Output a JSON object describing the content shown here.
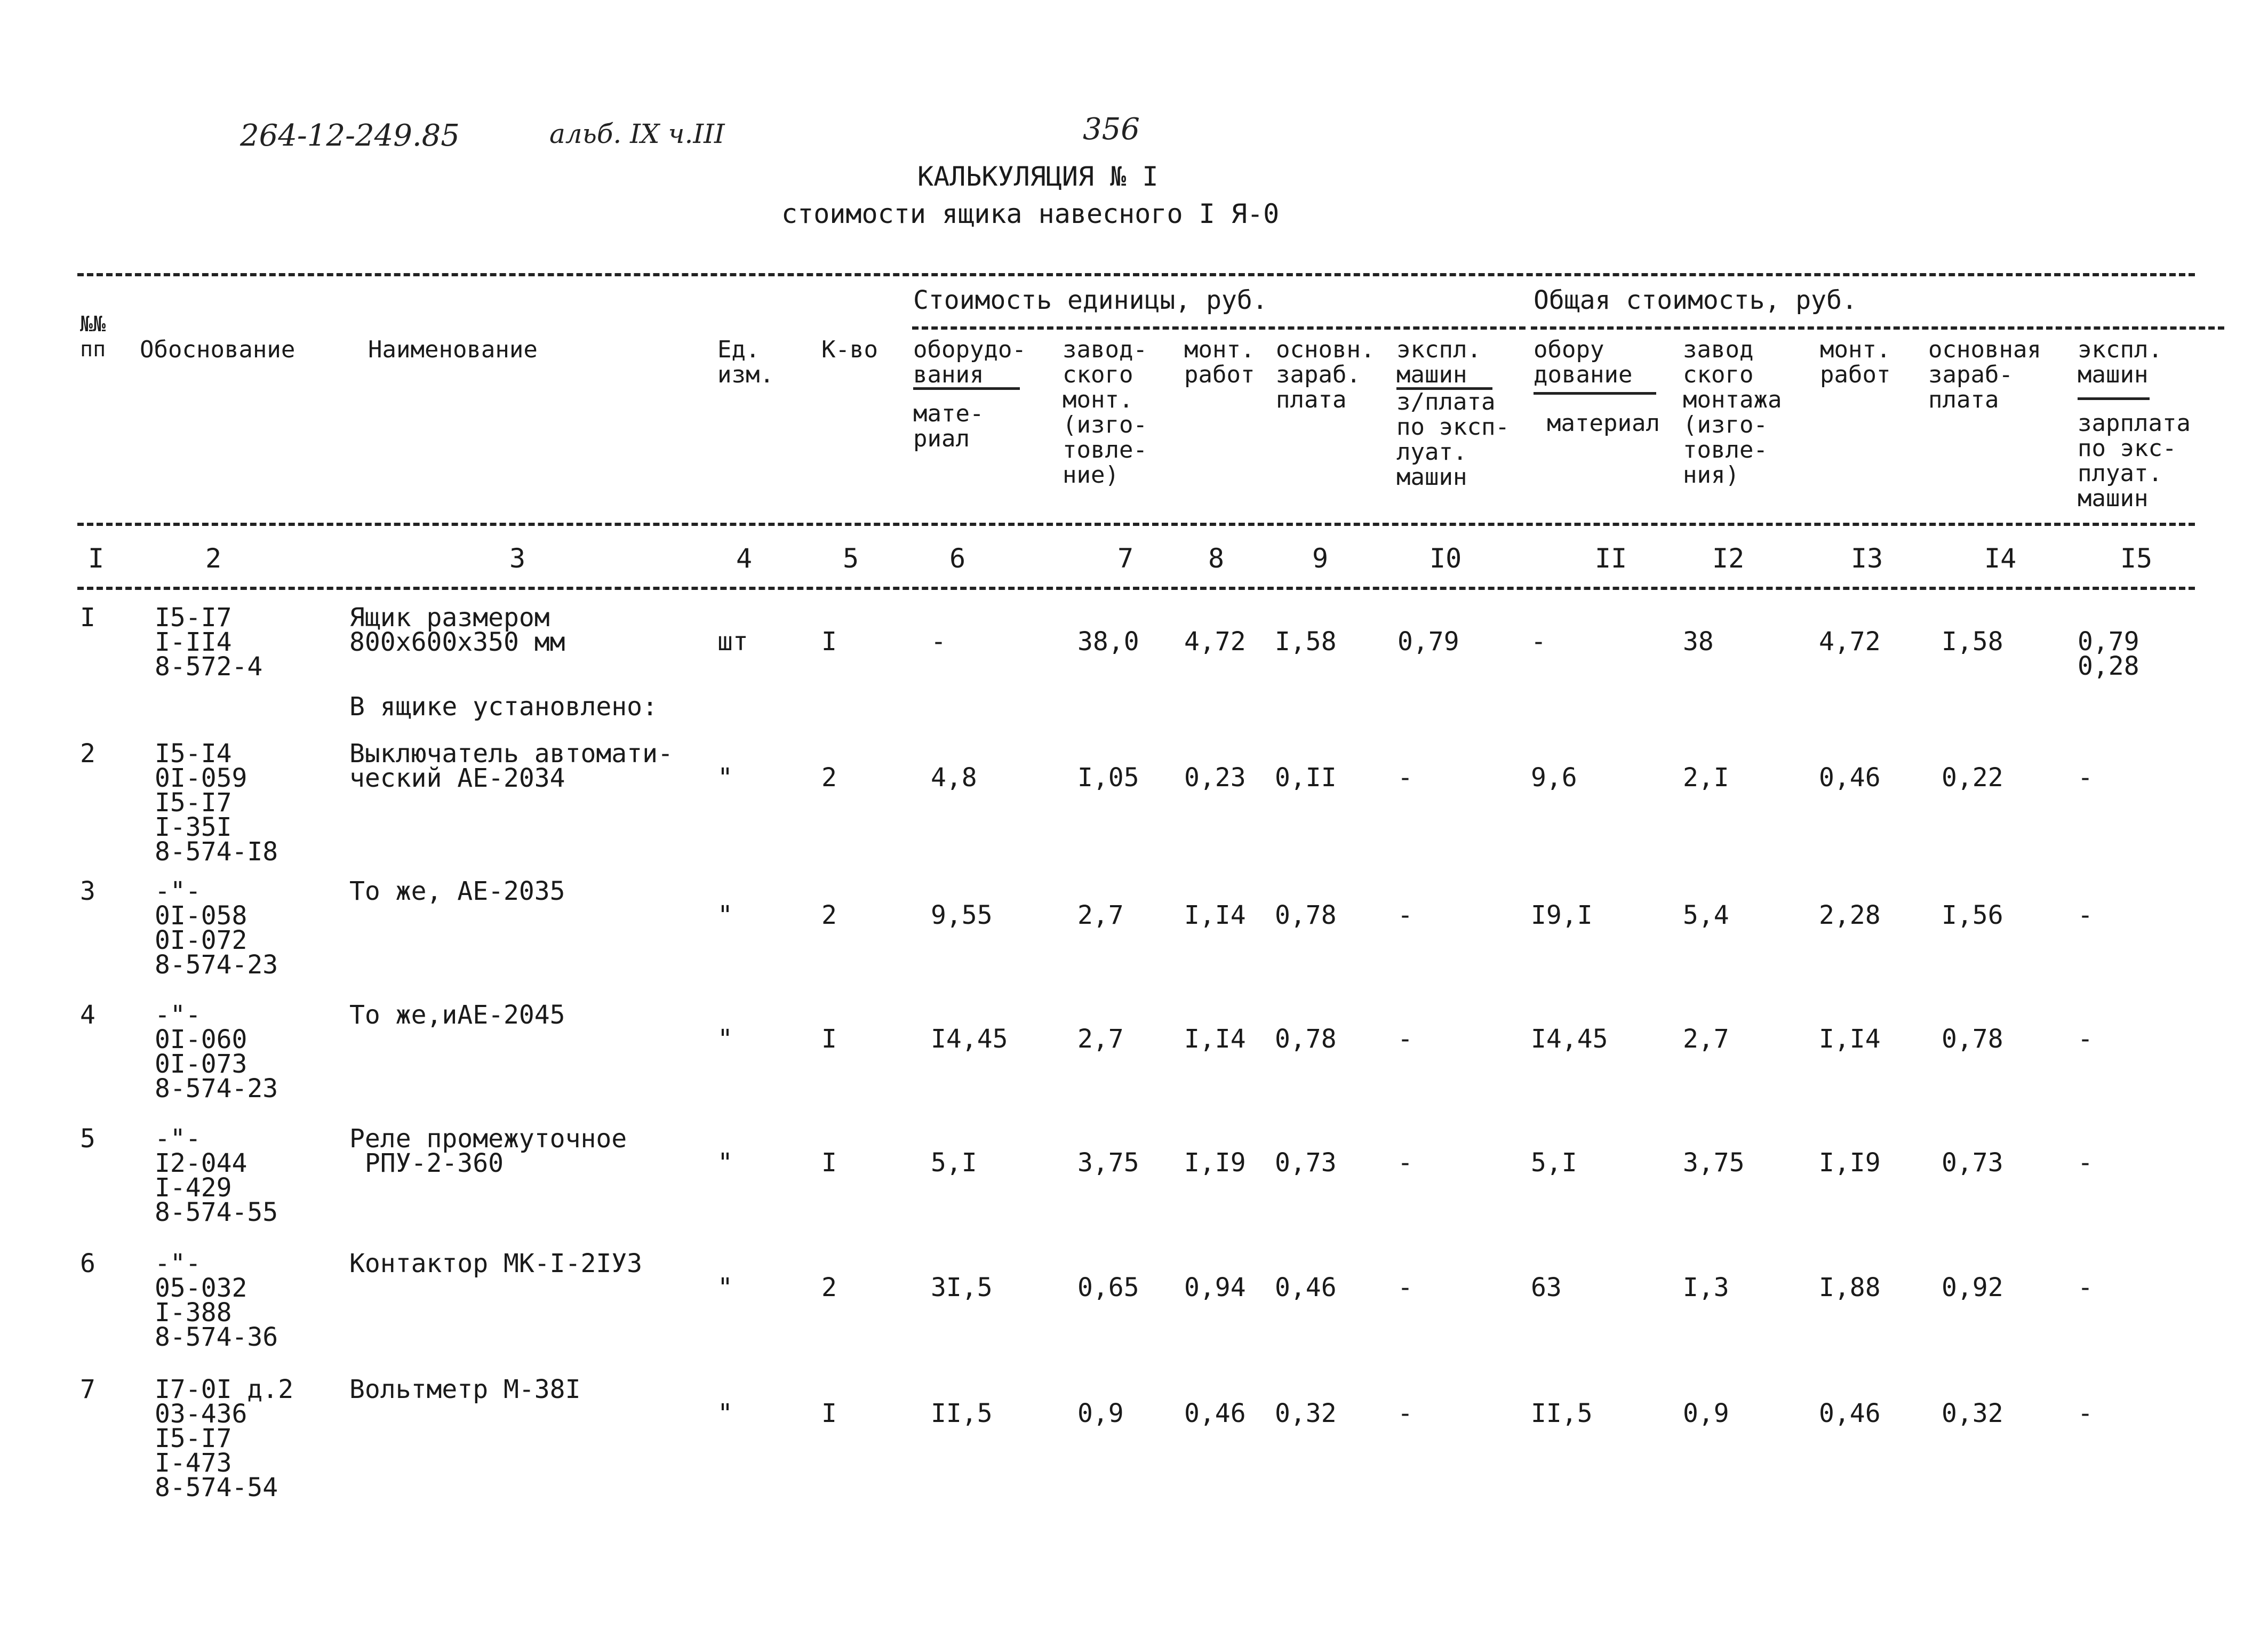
{
  "document": {
    "ref_handwritten": "264-12-249.85",
    "album_handwritten": "альб. IX ч.III",
    "page_number": "356",
    "title": "КАЛЬКУЛЯЦИЯ № I",
    "subtitle": "стоимости ящика навесного I Я-0"
  },
  "table": {
    "group_headers": {
      "unit_cost": "Стоимость единицы, руб.",
      "total_cost": "Общая стоимость, руб."
    },
    "headers": {
      "c1": "№№\nпп",
      "c2": "Обоснование",
      "c3": "Наименование",
      "c4": "Ед.\nизм.",
      "c5": "К-во",
      "c6_top": "оборудо-\nвания",
      "c6_bottom": "мате-\nриал",
      "c7": "завод-\nского\nмонт.\n(изго-\nтовле-\nние)",
      "c8": "монт.\nработ",
      "c9": "основн.\nзараб.\nплата",
      "c10_top": "экспл.\nмашин",
      "c10_bottom": "з/плата\nпо эксп-\nлуат.\nмашин",
      "c11_top": "обору\nдование",
      "c11_bottom": "материал",
      "c12": "завод\nского\nмонтажа\n(изго-\nтовле-\nния)",
      "c13": "монт.\nработ",
      "c14": "основная\nзараб-\nплата",
      "c15_top": "экспл.\nмашин",
      "c15_bottom": "зарплата\nпо экс-\nплуат.\nмашин"
    },
    "column_numbers": [
      "I",
      "2",
      "3",
      "4",
      "5",
      "6",
      "7",
      "8",
      "9",
      "I0",
      "II",
      "I2",
      "I3",
      "I4",
      "I5"
    ],
    "rows": [
      {
        "n": "I",
        "basis": "I5-I7\nI-II4\n8-572-4",
        "name": "Ящик размером\n800х600х350 мм",
        "unit": "шт",
        "qty": "I",
        "c6": "-",
        "c7": "38,0",
        "c8": "4,72",
        "c9": "I,58",
        "c10": "0,79",
        "c11": "-",
        "c12": "38",
        "c13": "4,72",
        "c14": "I,58",
        "c15": "0,79\n0,28"
      },
      {
        "n": "2",
        "basis": "I5-I4\n0I-059\nI5-I7\nI-35I\n8-574-I8",
        "name": "Выключатель автомати-\nческий АЕ-2034",
        "unit": "\"",
        "qty": "2",
        "c6": "4,8",
        "c7": "I,05",
        "c8": "0,23",
        "c9": "0,II",
        "c10": "-",
        "c11": "9,6",
        "c12": "2,I",
        "c13": "0,46",
        "c14": "0,22",
        "c15": "-"
      },
      {
        "n": "3",
        "basis": "-\"-\n0I-058\n0I-072\n8-574-23",
        "name": "То же, АЕ-2035",
        "unit": "\"",
        "qty": "2",
        "c6": "9,55",
        "c7": "2,7",
        "c8": "I,I4",
        "c9": "0,78",
        "c10": "-",
        "c11": "I9,I",
        "c12": "5,4",
        "c13": "2,28",
        "c14": "I,56",
        "c15": "-"
      },
      {
        "n": "4",
        "basis": "-\"-\n0I-060\n0I-073\n8-574-23",
        "name": "То же,иАЕ-2045",
        "unit": "\"",
        "qty": "I",
        "c6": "I4,45",
        "c7": "2,7",
        "c8": "I,I4",
        "c9": "0,78",
        "c10": "-",
        "c11": "I4,45",
        "c12": "2,7",
        "c13": "I,I4",
        "c14": "0,78",
        "c15": "-"
      },
      {
        "n": "5",
        "basis": "-\"-\nI2-044\nI-429\n8-574-55",
        "name": "Реле промежуточное\n РПУ-2-360",
        "unit": "\"",
        "qty": "I",
        "c6": "5,I",
        "c7": "3,75",
        "c8": "I,I9",
        "c9": "0,73",
        "c10": "-",
        "c11": "5,I",
        "c12": "3,75",
        "c13": "I,I9",
        "c14": "0,73",
        "c15": "-"
      },
      {
        "n": "6",
        "basis": "-\"-\n05-032\nI-388\n8-574-36",
        "name": "Контактор МК-I-2IУ3",
        "unit": "\"",
        "qty": "2",
        "c6": "3I,5",
        "c7": "0,65",
        "c8": "0,94",
        "c9": "0,46",
        "c10": "-",
        "c11": "63",
        "c12": "I,3",
        "c13": "I,88",
        "c14": "0,92",
        "c15": "-"
      },
      {
        "n": "7",
        "basis": "I7-0I д.2\n03-436\nI5-I7\nI-473\n8-574-54",
        "name": "Вольтметр М-38I",
        "unit": "\"",
        "qty": "I",
        "c6": "II,5",
        "c7": "0,9",
        "c8": "0,46",
        "c9": "0,32",
        "c10": "-",
        "c11": "II,5",
        "c12": "0,9",
        "c13": "0,46",
        "c14": "0,32",
        "c15": "-"
      }
    ],
    "box_note": "В ящике установлено:"
  }
}
